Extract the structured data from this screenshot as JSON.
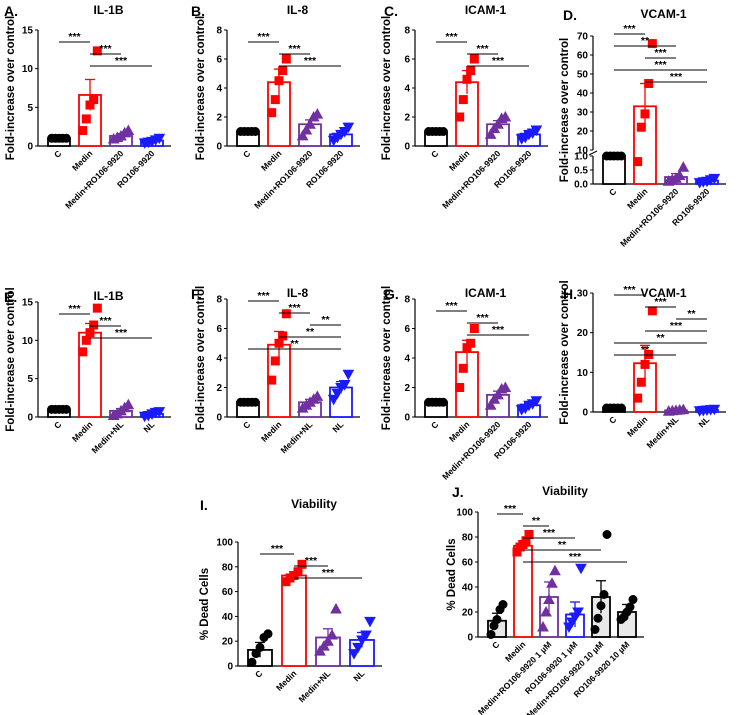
{
  "chart_data": [
    {
      "type": "bar",
      "letter": "A.",
      "title": "IL-1B",
      "ylabel": "Fold-increase over control",
      "categories": [
        "C",
        "Medin",
        "Medin+RO106-9920",
        "RO106-9920"
      ],
      "yticks": [
        "0",
        "5",
        "10",
        "15"
      ],
      "ylim": [
        0,
        15
      ],
      "values": [
        1.0,
        6.6,
        1.3,
        0.7
      ],
      "errors": [
        0.05,
        2.0,
        0.3,
        0.15
      ],
      "points": [
        [
          1,
          1,
          1,
          1,
          1
        ],
        [
          2.0,
          3.5,
          5.3,
          6.0,
          12.3
        ],
        [
          0.9,
          1.1,
          1.3,
          1.7,
          2.0
        ],
        [
          0.4,
          0.5,
          0.6,
          0.8,
          1.0
        ]
      ],
      "brackets": [
        {
          "from": 0,
          "to": 1,
          "label": "***"
        },
        {
          "from": 1,
          "to": 2,
          "label": "***"
        },
        {
          "from": 1,
          "to": 3,
          "label": "***"
        }
      ]
    },
    {
      "type": "bar",
      "letter": "B.",
      "title": "IL-8",
      "ylabel": "Fold-increase over control",
      "categories": [
        "C",
        "Medin",
        "Medin+RO106-9920",
        "RO106-9920"
      ],
      "yticks": [
        "0",
        "2",
        "4",
        "6",
        "8"
      ],
      "ylim": [
        0,
        8
      ],
      "values": [
        1.0,
        4.4,
        1.5,
        0.8
      ],
      "errors": [
        0.05,
        0.9,
        0.3,
        0.2
      ],
      "points": [
        [
          1,
          1,
          1,
          1,
          1
        ],
        [
          2.3,
          3.2,
          4.5,
          5.2,
          6.0
        ],
        [
          0.7,
          1.1,
          1.5,
          2.0,
          2.2
        ],
        [
          0.4,
          0.6,
          0.8,
          1.0,
          1.3
        ]
      ],
      "brackets": [
        {
          "from": 0,
          "to": 1,
          "label": "***"
        },
        {
          "from": 1,
          "to": 2,
          "label": "***"
        },
        {
          "from": 1,
          "to": 3,
          "label": "***"
        }
      ]
    },
    {
      "type": "bar",
      "letter": "C.",
      "title": "ICAM-1",
      "ylabel": "Fold-increase over control",
      "categories": [
        "C",
        "Medin",
        "Medin+RO106-9920",
        "RO106-9920"
      ],
      "yticks": [
        "0",
        "2",
        "4",
        "6",
        "8"
      ],
      "ylim": [
        0,
        8
      ],
      "values": [
        1.0,
        4.4,
        1.5,
        0.8
      ],
      "errors": [
        0.05,
        0.8,
        0.25,
        0.15
      ],
      "points": [
        [
          1,
          1,
          1,
          1,
          1
        ],
        [
          2.0,
          3.2,
          4.6,
          5.2,
          6.0
        ],
        [
          0.8,
          1.2,
          1.5,
          1.9,
          2.0
        ],
        [
          0.5,
          0.6,
          0.8,
          0.9,
          1.1
        ]
      ],
      "brackets": [
        {
          "from": 0,
          "to": 1,
          "label": "***"
        },
        {
          "from": 1,
          "to": 2,
          "label": "***"
        },
        {
          "from": 1,
          "to": 3,
          "label": "***"
        }
      ]
    },
    {
      "type": "bar",
      "letter": "D.",
      "title": "VCAM-1",
      "ylabel": "Fold-increase over control",
      "categories": [
        "C",
        "Medin",
        "Medin+RO106-9920",
        "RO106-9920"
      ],
      "yticks_lower": [
        "0.0",
        "0.5",
        "1.0"
      ],
      "yticks_upper": [
        "10",
        "20",
        "30",
        "40",
        "50",
        "60",
        "70"
      ],
      "broken_axis": {
        "lower": [
          0,
          1
        ],
        "upper": [
          10,
          70
        ]
      },
      "values": [
        1.0,
        33.0,
        0.25,
        0.12
      ],
      "errors": [
        0.0,
        12.0,
        0.12,
        0.06
      ],
      "points": [
        [
          1,
          1,
          1,
          1,
          1
        ],
        [
          0.8,
          22,
          29,
          45,
          66
        ],
        [
          0.1,
          0.15,
          0.2,
          0.3,
          0.6
        ],
        [
          0.05,
          0.08,
          0.1,
          0.15,
          0.2
        ]
      ],
      "brackets": [
        {
          "from": 0,
          "to": 1,
          "label": "***"
        },
        {
          "from": 0,
          "to": 2,
          "label": "**"
        },
        {
          "from": 1,
          "to": 2,
          "label": "***"
        },
        {
          "from": 0,
          "to": 3,
          "label": "***"
        },
        {
          "from": 1,
          "to": 3,
          "label": "***"
        }
      ]
    },
    {
      "type": "bar",
      "letter": "E.",
      "title": "IL-1B",
      "ylabel": "Fold-increase over control",
      "categories": [
        "C",
        "Medin",
        "Medin+NL",
        "NL"
      ],
      "yticks": [
        "0",
        "5",
        "10",
        "15"
      ],
      "ylim": [
        0,
        15
      ],
      "values": [
        1.0,
        11.0,
        0.8,
        0.4
      ],
      "errors": [
        0.05,
        1.2,
        0.3,
        0.15
      ],
      "points": [
        [
          1,
          1,
          1,
          1,
          1
        ],
        [
          8.5,
          10,
          11,
          12,
          14.2
        ],
        [
          0.2,
          0.4,
          0.8,
          1.2,
          1.6
        ],
        [
          0.1,
          0.2,
          0.4,
          0.6,
          0.7
        ]
      ],
      "brackets": [
        {
          "from": 0,
          "to": 1,
          "label": "***"
        },
        {
          "from": 1,
          "to": 2,
          "label": "***"
        },
        {
          "from": 1,
          "to": 3,
          "label": "***"
        }
      ]
    },
    {
      "type": "bar",
      "letter": "F.",
      "title": "IL-8",
      "ylabel": "Fold-increase over control",
      "categories": [
        "C",
        "Medin",
        "Medin+NL",
        "NL"
      ],
      "yticks": [
        "0",
        "2",
        "4",
        "6",
        "8"
      ],
      "ylim": [
        0,
        8
      ],
      "values": [
        1.0,
        4.9,
        1.0,
        2.0
      ],
      "errors": [
        0.05,
        0.9,
        0.2,
        0.4
      ],
      "points": [
        [
          1,
          1,
          1,
          1,
          1
        ],
        [
          2.5,
          3.8,
          5.0,
          5.5,
          7.0
        ],
        [
          0.6,
          0.8,
          1.0,
          1.2,
          1.4
        ],
        [
          1.2,
          1.6,
          2.0,
          2.2,
          2.9
        ]
      ],
      "brackets": [
        {
          "from": 0,
          "to": 1,
          "label": "***"
        },
        {
          "from": 1,
          "to": 2,
          "label": "***"
        },
        {
          "from": 2,
          "to": 3,
          "label": "**"
        },
        {
          "from": 1,
          "to": 3,
          "label": "**"
        },
        {
          "from": 0,
          "to": 3,
          "label": "**"
        }
      ]
    },
    {
      "type": "bar",
      "letter": "G.",
      "title": "ICAM-1",
      "ylabel": "Fold-increase over control",
      "categories": [
        "C",
        "Medin",
        "Medin+RO106-9920",
        "RO106-9920"
      ],
      "yticks": [
        "0",
        "2",
        "4",
        "6",
        "8"
      ],
      "ylim": [
        0,
        8
      ],
      "values": [
        1.0,
        4.4,
        1.5,
        0.8
      ],
      "errors": [
        0.05,
        0.8,
        0.25,
        0.15
      ],
      "points": [
        [
          1,
          1,
          1,
          1,
          1
        ],
        [
          2.0,
          3.3,
          4.7,
          5.0,
          6.0
        ],
        [
          0.8,
          1.2,
          1.5,
          1.9,
          2.0
        ],
        [
          0.5,
          0.6,
          0.8,
          0.9,
          1.1
        ]
      ],
      "brackets": [
        {
          "from": 0,
          "to": 1,
          "label": "***"
        },
        {
          "from": 1,
          "to": 2,
          "label": "***"
        },
        {
          "from": 1,
          "to": 3,
          "label": "***"
        }
      ]
    },
    {
      "type": "bar",
      "letter": "H.",
      "title": "VCAM-1",
      "ylabel": "Fold-increase over control",
      "categories": [
        "C",
        "Medin",
        "Medin+NL",
        "NL"
      ],
      "yticks": [
        "0",
        "10",
        "20",
        "30"
      ],
      "ylim": [
        0,
        30
      ],
      "values": [
        1.0,
        12.3,
        0.4,
        0.5
      ],
      "errors": [
        0.05,
        4.5,
        0.15,
        0.15
      ],
      "points": [
        [
          1,
          1,
          1,
          1,
          1
        ],
        [
          3.5,
          7.5,
          12,
          14.5,
          25.5
        ],
        [
          0.2,
          0.3,
          0.4,
          0.5,
          0.6
        ],
        [
          0.3,
          0.4,
          0.5,
          0.6,
          0.7
        ]
      ],
      "brackets": [
        {
          "from": 0,
          "to": 1,
          "label": "***"
        },
        {
          "from": 1,
          "to": 2,
          "label": "***"
        },
        {
          "from": 2,
          "to": 3,
          "label": "**"
        },
        {
          "from": 1,
          "to": 3,
          "label": "***"
        },
        {
          "from": 0,
          "to": 3,
          "label": "**"
        },
        {
          "from": 0,
          "to": 2,
          "label": "**"
        }
      ]
    },
    {
      "type": "bar",
      "letter": "I.",
      "title": "Viability",
      "ylabel": "% Dead Cells",
      "categories": [
        "C",
        "Medin",
        "Medin+NL",
        "NL"
      ],
      "yticks": [
        "0",
        "20",
        "40",
        "60",
        "80",
        "100"
      ],
      "ylim": [
        0,
        100
      ],
      "values": [
        13,
        73,
        23,
        21
      ],
      "errors": [
        6,
        3,
        7,
        6
      ],
      "points": [
        [
          3,
          10,
          15,
          23,
          26
        ],
        [
          68,
          71,
          73,
          76,
          82
        ],
        [
          12,
          16,
          20,
          25,
          46
        ],
        [
          10,
          15,
          21,
          25,
          36
        ]
      ],
      "brackets": [
        {
          "from": 0,
          "to": 1,
          "label": "***"
        },
        {
          "from": 1,
          "to": 2,
          "label": "***"
        },
        {
          "from": 1,
          "to": 3,
          "label": "***"
        }
      ]
    },
    {
      "type": "bar",
      "letter": "J.",
      "title": "Viability",
      "ylabel": "% Dead Cells",
      "categories": [
        "C",
        "Medin",
        "Medin+RO106-9920 1 µM",
        "RO106-9920 1 µM",
        "Medin+RO106-9920 10 µM",
        "RO106-9920 10 µM"
      ],
      "yticks": [
        "0",
        "20",
        "40",
        "60",
        "80",
        "100"
      ],
      "ylim": [
        0,
        100
      ],
      "values": [
        13,
        73,
        32,
        18,
        32,
        20
      ],
      "errors": [
        6,
        4,
        12,
        10,
        13,
        6
      ],
      "points": [
        [
          2,
          9,
          14,
          22,
          26
        ],
        [
          68,
          72,
          74,
          77,
          82
        ],
        [
          8,
          20,
          30,
          43,
          53
        ],
        [
          8,
          12,
          16,
          20,
          55
        ],
        [
          6,
          15,
          25,
          34,
          82
        ],
        [
          14,
          16,
          20,
          24,
          30
        ]
      ],
      "brackets": [
        {
          "from": 0,
          "to": 1,
          "label": "***"
        },
        {
          "from": 1,
          "to": 2,
          "label": "**"
        },
        {
          "from": 1,
          "to": 3,
          "label": "***"
        },
        {
          "from": 1,
          "to": 4,
          "label": "**"
        },
        {
          "from": 1,
          "to": 5,
          "label": "***"
        }
      ]
    }
  ],
  "colors": {
    "C": "#000000",
    "Medin": "#ff0000",
    "Medin_combo": "#7030a0",
    "Drug": "#1a1aff",
    "J_colors": [
      "#000000",
      "#ff0000",
      "#7030a0",
      "#1a1aff",
      "#000000",
      "#000000"
    ],
    "J_fills": [
      "#cccccc",
      "#ff0000",
      "#ffffff",
      "#ffffff",
      "#cccccc",
      "#cccccc"
    ]
  }
}
